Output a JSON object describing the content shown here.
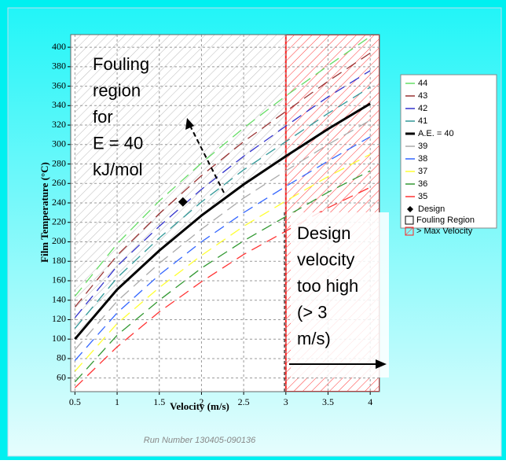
{
  "chart_data": {
    "type": "line",
    "x_label": "Velocity (m/s)",
    "y_label": "Film Temperature (°C)",
    "footer": "Run Number 130405-090136",
    "x": [
      0.5,
      1,
      1.5,
      2,
      2.5,
      3,
      3.5,
      4
    ],
    "xlim": [
      0.45,
      4.11
    ],
    "ylim": [
      46,
      413
    ],
    "xticks": [
      0.5,
      1,
      1.5,
      2,
      2.5,
      3,
      3.5,
      4
    ],
    "yticks": [
      60,
      80,
      100,
      120,
      140,
      160,
      180,
      200,
      220,
      240,
      260,
      280,
      300,
      320,
      340,
      360,
      380,
      400
    ],
    "grid": true,
    "series": [
      {
        "name": "44",
        "color": "#66dd66",
        "values": [
          144,
          198,
          242,
          281,
          317,
          350,
          381,
          411
        ]
      },
      {
        "name": "43",
        "color": "#993333",
        "values": [
          133,
          186,
          229,
          268,
          303,
          334,
          365,
          394
        ]
      },
      {
        "name": "42",
        "color": "#3333cc",
        "values": [
          122,
          175,
          216,
          254,
          288,
          319,
          349,
          376
        ]
      },
      {
        "name": "41",
        "color": "#339999",
        "values": [
          111,
          163,
          204,
          241,
          274,
          303,
          332,
          359
        ]
      },
      {
        "name": "A.E. = 40",
        "color": "#000000",
        "values": [
          100,
          151,
          191,
          227,
          259,
          288,
          316,
          342
        ]
      },
      {
        "name": "39",
        "color": "#aaaaaa",
        "values": [
          89,
          139,
          178,
          213,
          245,
          273,
          300,
          325
        ]
      },
      {
        "name": "38",
        "color": "#3366ff",
        "values": [
          78,
          127,
          166,
          200,
          230,
          257,
          283,
          308
        ]
      },
      {
        "name": "37",
        "color": "#ffff33",
        "values": [
          67,
          116,
          153,
          186,
          216,
          242,
          267,
          290
        ]
      },
      {
        "name": "36",
        "color": "#339933",
        "values": [
          56,
          104,
          140,
          173,
          201,
          226,
          251,
          273
        ]
      },
      {
        "name": "35",
        "color": "#ff3333",
        "values": [
          50,
          92,
          128,
          159,
          187,
          211,
          235,
          256
        ]
      }
    ],
    "design": {
      "name": "Design",
      "x": 1.78,
      "y": 241
    },
    "fouling_region": {
      "name": "Fouling Region"
    },
    "max_velocity": {
      "name": "> Max Velocity",
      "value": 3
    },
    "annotations": [
      {
        "lines": [
          "Fouling",
          "region",
          "for",
          "E = 40",
          "kJ/mol"
        ]
      },
      {
        "lines": [
          "Design",
          "velocity",
          "too high",
          "(> 3",
          "m/s)"
        ]
      }
    ]
  }
}
